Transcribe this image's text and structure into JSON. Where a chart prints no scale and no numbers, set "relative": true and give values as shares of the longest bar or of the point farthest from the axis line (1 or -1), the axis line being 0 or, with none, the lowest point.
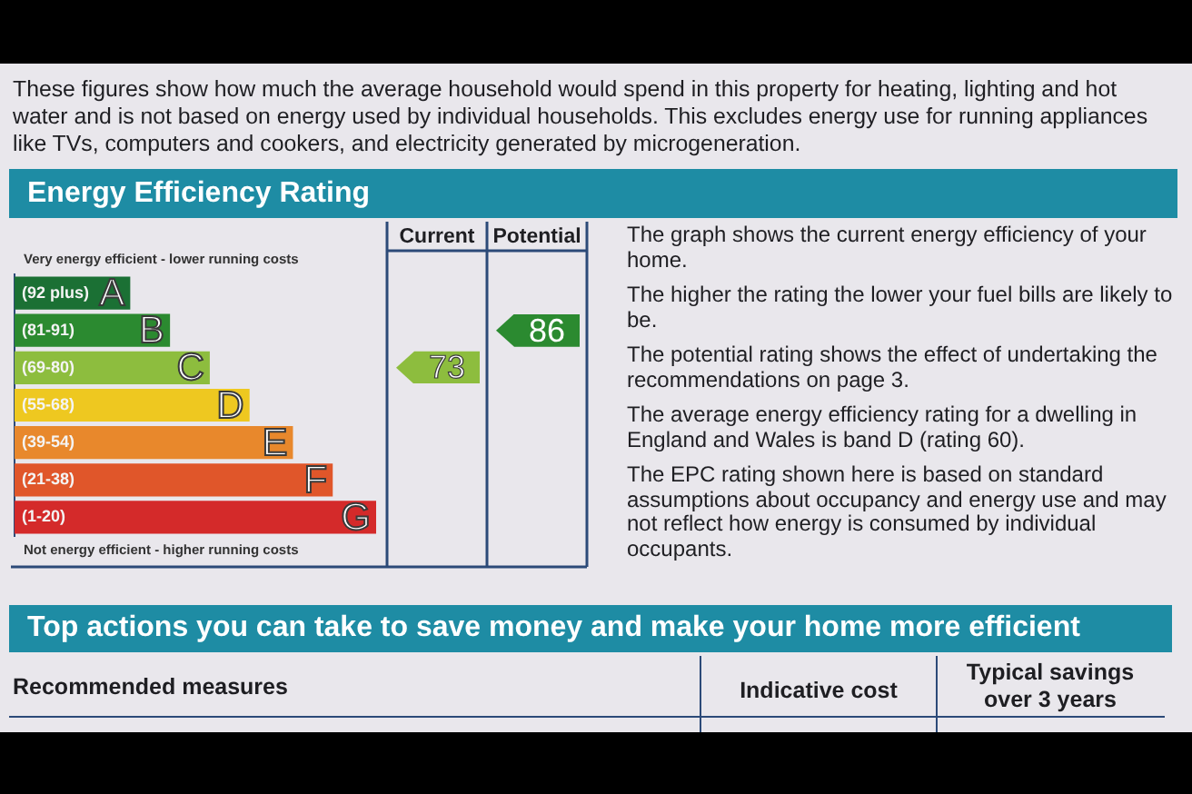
{
  "chart_data": {
    "type": "bar",
    "orientation": "horizontal",
    "relative": true,
    "title": "Energy Efficiency Rating",
    "categories": [
      "(92 plus)",
      "(81-91)",
      "(69-80)",
      "(55-68)",
      "(39-54)",
      "(21-38)",
      "(1-20)"
    ],
    "values": [
      0.32,
      0.43,
      0.54,
      0.65,
      0.77,
      0.88,
      1
    ],
    "colors": [
      "#1b7034",
      "#2b8a30",
      "#8dbd3e",
      "#eec820",
      "#e8882c",
      "#e0562a",
      "#d42a2a"
    ],
    "annotations": [
      "These figures show how much the average household would spend in this property for heating, lighting and hot water and is not based on energy used by individual households. This excludes energy use for running appliances like TVs, computers and cookers, and electricity generated by microgeneration.",
      "Very energy efficient - lower running costs",
      "Not energy efficient - higher running costs",
      "Current",
      "Potential",
      "73",
      "86",
      "The graph shows the current energy efficiency of your home.",
      "The higher the rating the lower your fuel bills are likely to be.",
      "The potential rating shows the effect of undertaking the recommendations on page 3.",
      "The average energy efficiency rating for a dwelling in England and Wales is band D (rating 60).",
      "The EPC rating shown here is based on standard assumptions about occupancy and energy use and may not reflect how energy is consumed by individual occupants.",
      "Top actions you can take to save money and make your home more efficient",
      "Recommended measures",
      "Indicative cost",
      "Typical savings over 3 years",
      {
        "text": "A",
        "x": 0.32,
        "y": "(92 plus)"
      },
      {
        "text": "B",
        "x": 0.43,
        "y": "(81-91)"
      },
      {
        "text": "C",
        "x": 0.54,
        "y": "(69-80)"
      },
      {
        "text": "D",
        "x": 0.65,
        "y": "(55-68)"
      },
      {
        "text": "E",
        "x": 0.77,
        "y": "(39-54)"
      },
      {
        "text": "F",
        "x": 0.88,
        "y": "(21-38)"
      },
      {
        "text": "G",
        "x": 1,
        "y": "(1-20)"
      }
    ]
  }
}
